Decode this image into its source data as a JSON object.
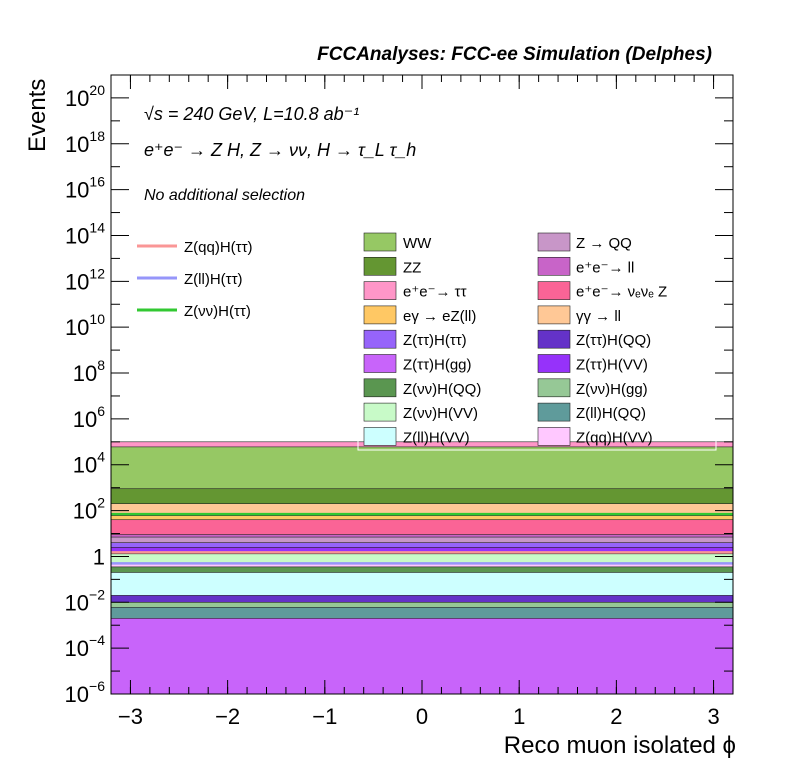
{
  "title": "FCCAnalyses: FCC-ee Simulation (Delphes)",
  "energy_label": "√s = 240 GeV, L=10.8 ab⁻¹",
  "process_label": "e⁺e⁻ → Z H, Z → νν, H → τ_L τ_h",
  "selection_label": "No additional selection",
  "chart_data": {
    "type": "area",
    "stacked": true,
    "xlabel": "Reco muon isolated ϕ",
    "ylabel": "Events",
    "xlim": [
      -3.2,
      3.2
    ],
    "ylim": [
      1e-06,
      1e+21
    ],
    "ylog": true,
    "xticks": [
      "−3",
      "−2",
      "−1",
      "0",
      "1",
      "2",
      "3"
    ],
    "yticks": [
      {
        "base": "10",
        "exp": "−6"
      },
      {
        "base": "10",
        "exp": "−4"
      },
      {
        "base": "10",
        "exp": "−2"
      },
      {
        "base": "1",
        "exp": ""
      },
      {
        "base": "10",
        "exp": "2"
      },
      {
        "base": "10",
        "exp": "4"
      },
      {
        "base": "10",
        "exp": "6"
      },
      {
        "base": "10",
        "exp": "8"
      },
      {
        "base": "10",
        "exp": "10"
      },
      {
        "base": "10",
        "exp": "12"
      },
      {
        "base": "10",
        "exp": "14"
      },
      {
        "base": "10",
        "exp": "16"
      },
      {
        "base": "10",
        "exp": "18"
      },
      {
        "base": "10",
        "exp": "20"
      }
    ],
    "stack_levels": [
      {
        "name": "Z(ll)H(QQ)",
        "color": "#5f9b9b",
        "value": 0.006
      },
      {
        "name": "Z(νν)H(gg)",
        "color": "#96c896",
        "value": 0.01
      },
      {
        "name": "Z(ττ)H(QQ)",
        "color": "#6432c8",
        "value": 0.02
      },
      {
        "name": "Z(ττ)H(gg)",
        "color": "#c864fa",
        "value": 0.002
      },
      {
        "name": "Z(ll)H(VV)",
        "color": "#cdffff",
        "value": 0.2
      },
      {
        "name": "Z(νν)H(QQ)",
        "color": "#5a9650",
        "value": 0.35
      },
      {
        "name": "Z(qq)H(VV)",
        "color": "#ffc8ff",
        "value": 0.5
      },
      {
        "name": "Z(νν)H(VV)",
        "color": "#c8fac8",
        "value": 1.3
      },
      {
        "name": "Z(ττ)H(VV)",
        "color": "#9632fa",
        "value": 2.5
      },
      {
        "name": "Z(ττ)H(ττ)",
        "color": "#9664fa",
        "value": 4
      },
      {
        "name": "Z → QQ",
        "color": "#c896c8",
        "value": 7
      },
      {
        "name": "e⁺e⁻ → ll",
        "color": "#c864c8",
        "value": 9
      },
      {
        "name": "e⁺e⁻ → νₑνₑ Z",
        "color": "#fa6496",
        "value": 40
      },
      {
        "name": "eγ → eZ(ll)",
        "color": "#ffc864",
        "value": 60
      },
      {
        "name": "γγ → ll",
        "color": "#ffc896",
        "value": 200
      },
      {
        "name": "ZZ",
        "color": "#649632",
        "value": 900
      },
      {
        "name": "WW",
        "color": "#96c864",
        "value": 60000
      },
      {
        "name": "e⁺e⁻ → ττ",
        "color": "#ff96c8",
        "value": 100000
      }
    ],
    "signal_lines": [
      {
        "name": "Z(qq)H(ττ)",
        "color": "#fa9696",
        "value": 1.5
      },
      {
        "name": "Z(ll)H(ττ)",
        "color": "#9696fa",
        "value": 0.5
      },
      {
        "name": "Z(νν)H(ττ)",
        "color": "#32c832",
        "value": 70
      }
    ]
  },
  "legend": {
    "signals": [
      {
        "label": "Z(qq)H(ττ)",
        "color": "#fa9696"
      },
      {
        "label": "Z(ll)H(ττ)",
        "color": "#9696fa"
      },
      {
        "label": "Z(νν)H(ττ)",
        "color": "#32c832"
      }
    ],
    "backgrounds_col1": [
      {
        "label": "WW",
        "color": "#96c864"
      },
      {
        "label": "ZZ",
        "color": "#649632"
      },
      {
        "label": "e⁺e⁻→ ττ",
        "color": "#ff96c8"
      },
      {
        "label": "eγ → eZ(ll)",
        "color": "#ffc864"
      },
      {
        "label": "Z(ττ)H(ττ)",
        "color": "#9664fa"
      },
      {
        "label": "Z(ττ)H(gg)",
        "color": "#c864fa"
      },
      {
        "label": "Z(νν)H(QQ)",
        "color": "#5a9650"
      },
      {
        "label": "Z(νν)H(VV)",
        "color": "#c8fac8"
      },
      {
        "label": "Z(ll)H(VV)",
        "color": "#cdffff"
      }
    ],
    "backgrounds_col2": [
      {
        "label": "Z → QQ",
        "color": "#c896c8"
      },
      {
        "label": "e⁺e⁻→ ll",
        "color": "#c864c8"
      },
      {
        "label": "e⁺e⁻→ νₑνₑ Z",
        "color": "#fa6496"
      },
      {
        "label": "γγ → ll",
        "color": "#ffc896"
      },
      {
        "label": "Z(ττ)H(QQ)",
        "color": "#6432c8"
      },
      {
        "label": "Z(ττ)H(VV)",
        "color": "#9632fa"
      },
      {
        "label": "Z(νν)H(gg)",
        "color": "#96c896"
      },
      {
        "label": "Z(ll)H(QQ)",
        "color": "#5f9b9b"
      },
      {
        "label": "Z(qq)H(VV)",
        "color": "#ffc8ff"
      }
    ]
  }
}
